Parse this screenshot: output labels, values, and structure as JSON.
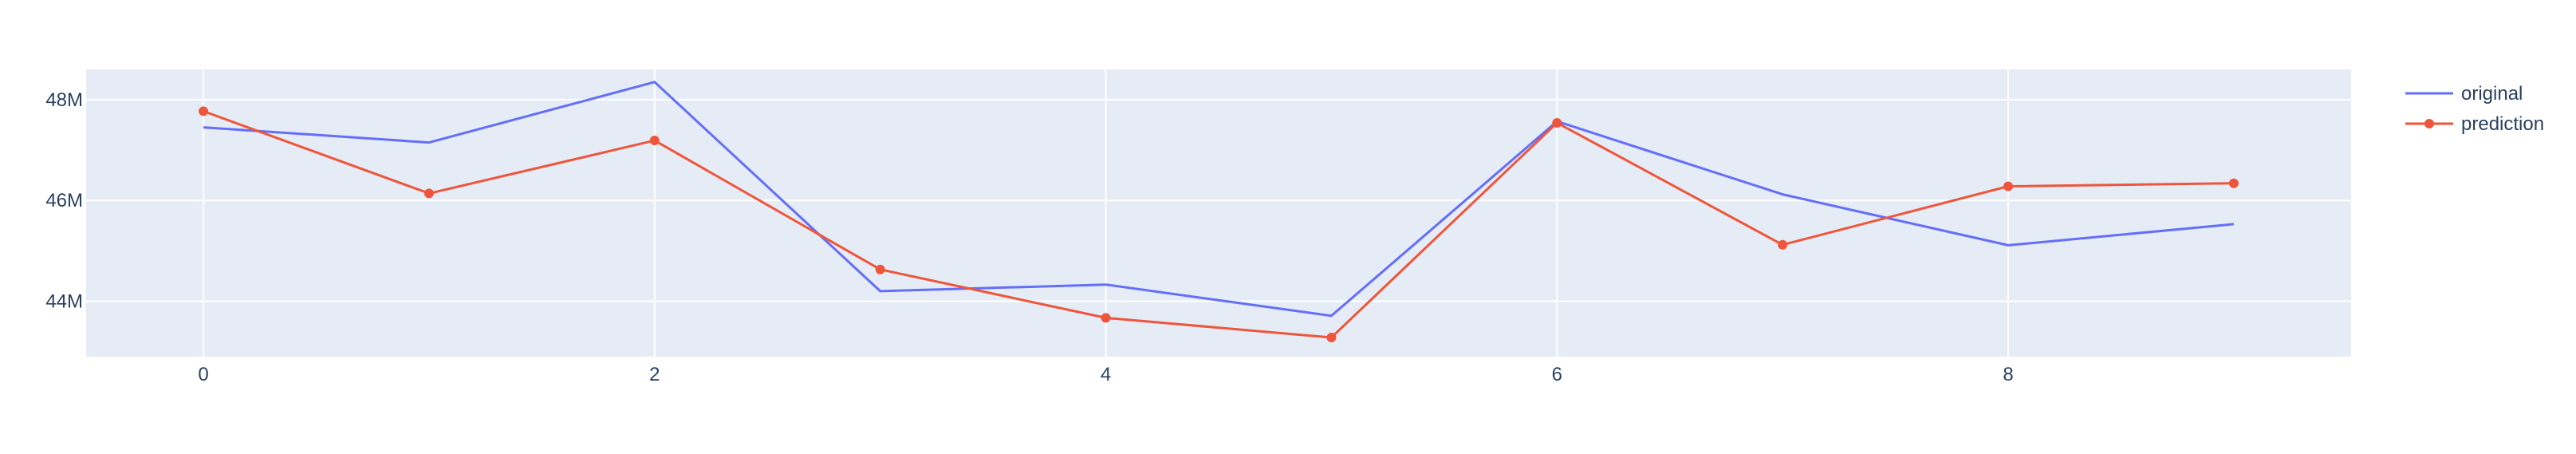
{
  "chart_data": {
    "type": "line",
    "x": [
      0,
      1,
      2,
      3,
      4,
      5,
      6,
      7,
      8,
      9
    ],
    "series": [
      {
        "name": "original",
        "color": "#636efa",
        "markers": false,
        "values": [
          47.45,
          47.15,
          48.35,
          44.2,
          44.33,
          43.71,
          47.57,
          46.12,
          45.11,
          45.53
        ]
      },
      {
        "name": "prediction",
        "color": "#ef553b",
        "markers": true,
        "values": [
          47.77,
          46.14,
          47.19,
          44.63,
          43.67,
          43.28,
          47.54,
          45.12,
          46.28,
          46.34
        ]
      }
    ],
    "x_ticks": [
      0,
      2,
      4,
      6,
      8
    ],
    "x_tick_labels": [
      "0",
      "2",
      "4",
      "6",
      "8"
    ],
    "y_ticks": [
      44,
      46,
      48
    ],
    "y_tick_labels": [
      "44M",
      "46M",
      "48M"
    ],
    "y_unit": "millions",
    "xlim": [
      -0.52,
      9.52
    ],
    "ylim": [
      42.9,
      48.6
    ],
    "grid": true,
    "legend_position": "top-right",
    "plot_background": "#e5ecf6",
    "title": "",
    "xlabel": "",
    "ylabel": ""
  }
}
